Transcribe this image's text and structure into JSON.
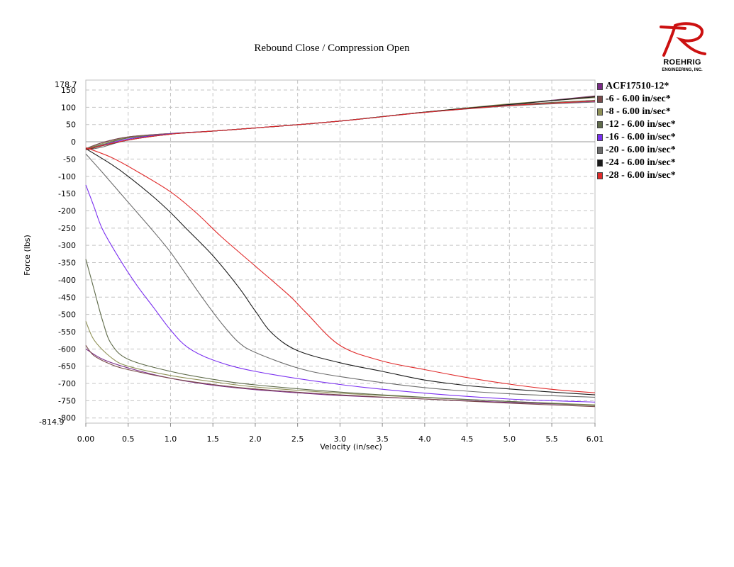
{
  "logo": {
    "name": "ROEHRIG",
    "sub": "ENGINEERING, INC.",
    "color": "#cc1111"
  },
  "chart_data": {
    "type": "line",
    "title": "Rebound Close / Compression Open",
    "xlabel": "Velocity (in/sec)",
    "ylabel": "Force (lbs)",
    "xlim": [
      0.0,
      6.01
    ],
    "ylim": [
      -814.9,
      178.7
    ],
    "x_ticks": [
      "0.00",
      "0.5",
      "1.0",
      "1.5",
      "2.0",
      "2.5",
      "3.0",
      "3.5",
      "4.0",
      "4.5",
      "5.0",
      "5.5",
      "6.01"
    ],
    "y_ticks": [
      "150",
      "100",
      "50",
      "0",
      "-50",
      "-100",
      "-150",
      "-200",
      "-250",
      "-300",
      "-350",
      "-400",
      "-450",
      "-500",
      "-550",
      "-600",
      "-650",
      "-700",
      "-750",
      "-800"
    ],
    "y_min_label": "-814.9",
    "y_max_label": "178.7",
    "grid": true,
    "legend_position": "right",
    "series": [
      {
        "name": "ACF17510-12*",
        "color": "#7a2a86",
        "upper": [
          [
            0,
            -20
          ],
          [
            0.2,
            -2
          ],
          [
            0.5,
            14
          ],
          [
            1.0,
            24
          ],
          [
            1.5,
            31
          ],
          [
            2.0,
            40
          ],
          [
            3.0,
            60
          ],
          [
            4.0,
            86
          ],
          [
            5.0,
            108
          ],
          [
            6.01,
            133
          ]
        ],
        "lower": [
          [
            0,
            -600
          ],
          [
            0.2,
            -630
          ],
          [
            0.5,
            -655
          ],
          [
            1.0,
            -685
          ],
          [
            1.5,
            -705
          ],
          [
            2.0,
            -718
          ],
          [
            2.5,
            -727
          ],
          [
            3.0,
            -735
          ],
          [
            4.0,
            -745
          ],
          [
            5.0,
            -755
          ],
          [
            6.01,
            -763
          ]
        ]
      },
      {
        "name": "-6 - 6.00 in/sec*",
        "color": "#7a4a4a",
        "upper": [
          [
            0,
            -20
          ],
          [
            0.2,
            -2
          ],
          [
            0.5,
            14
          ],
          [
            1.0,
            24
          ],
          [
            1.5,
            31
          ],
          [
            2.0,
            40
          ],
          [
            3.0,
            60
          ],
          [
            4.0,
            86
          ],
          [
            5.0,
            108
          ],
          [
            6.01,
            132
          ]
        ],
        "lower": [
          [
            0,
            -590
          ],
          [
            0.1,
            -620
          ],
          [
            0.3,
            -645
          ],
          [
            0.5,
            -660
          ],
          [
            1.0,
            -685
          ],
          [
            1.5,
            -703
          ],
          [
            2.0,
            -716
          ],
          [
            3.0,
            -733
          ],
          [
            4.0,
            -745
          ],
          [
            5.0,
            -757
          ],
          [
            6.01,
            -767
          ]
        ]
      },
      {
        "name": "-8 - 6.00 in/sec*",
        "color": "#8f9157",
        "upper": [
          [
            0,
            -21
          ],
          [
            0.2,
            -5
          ],
          [
            0.5,
            12
          ],
          [
            1.0,
            23
          ],
          [
            1.5,
            31
          ],
          [
            2.0,
            40
          ],
          [
            3.0,
            60
          ],
          [
            4.0,
            86
          ],
          [
            5.0,
            110
          ],
          [
            6.01,
            128
          ]
        ],
        "lower": [
          [
            0,
            -520
          ],
          [
            0.1,
            -575
          ],
          [
            0.3,
            -625
          ],
          [
            0.5,
            -650
          ],
          [
            1.0,
            -677
          ],
          [
            1.5,
            -695
          ],
          [
            2.0,
            -710
          ],
          [
            3.0,
            -728
          ],
          [
            4.0,
            -741
          ],
          [
            5.0,
            -752
          ],
          [
            6.01,
            -762
          ]
        ]
      },
      {
        "name": "-12 - 6.00 in/sec*",
        "color": "#5f6b4a",
        "upper": [
          [
            0,
            -21
          ],
          [
            0.2,
            -8
          ],
          [
            0.5,
            11
          ],
          [
            1.0,
            23
          ],
          [
            1.5,
            31
          ],
          [
            2.0,
            40
          ],
          [
            3.0,
            60
          ],
          [
            4.0,
            86
          ],
          [
            5.0,
            107
          ],
          [
            6.01,
            120
          ]
        ],
        "lower": [
          [
            0,
            -340
          ],
          [
            0.1,
            -430
          ],
          [
            0.2,
            -520
          ],
          [
            0.3,
            -585
          ],
          [
            0.5,
            -630
          ],
          [
            1.0,
            -665
          ],
          [
            1.5,
            -688
          ],
          [
            2.0,
            -704
          ],
          [
            3.0,
            -725
          ],
          [
            4.0,
            -740
          ],
          [
            5.0,
            -752
          ],
          [
            6.01,
            -764
          ]
        ]
      },
      {
        "name": "-16 - 6.00 in/sec*",
        "color": "#7a2ff0",
        "upper": [
          [
            0,
            -22
          ],
          [
            0.1,
            -17
          ],
          [
            0.2,
            -10
          ],
          [
            0.5,
            8
          ],
          [
            1.0,
            23
          ],
          [
            1.5,
            31
          ],
          [
            2.0,
            40
          ],
          [
            3.0,
            60
          ],
          [
            4.0,
            85
          ],
          [
            5.0,
            105
          ],
          [
            6.01,
            117
          ]
        ],
        "lower": [
          [
            0,
            -125
          ],
          [
            0.1,
            -190
          ],
          [
            0.2,
            -255
          ],
          [
            0.4,
            -340
          ],
          [
            0.6,
            -415
          ],
          [
            0.8,
            -480
          ],
          [
            1.0,
            -545
          ],
          [
            1.2,
            -595
          ],
          [
            1.5,
            -632
          ],
          [
            2.0,
            -665
          ],
          [
            3.0,
            -703
          ],
          [
            4.0,
            -728
          ],
          [
            5.0,
            -745
          ],
          [
            6.01,
            -754
          ]
        ]
      },
      {
        "name": "-20 - 6.00 in/sec*",
        "color": "#6b6b6b",
        "upper": [
          [
            0,
            -23
          ],
          [
            0.1,
            -20
          ],
          [
            0.2,
            -15
          ],
          [
            0.5,
            5
          ],
          [
            1.0,
            22
          ],
          [
            1.5,
            31
          ],
          [
            2.0,
            40
          ],
          [
            3.0,
            60
          ],
          [
            4.0,
            85
          ],
          [
            5.0,
            104
          ],
          [
            6.01,
            115
          ]
        ],
        "lower": [
          [
            0,
            -35
          ],
          [
            0.2,
            -90
          ],
          [
            0.5,
            -175
          ],
          [
            0.8,
            -260
          ],
          [
            1.0,
            -320
          ],
          [
            1.2,
            -390
          ],
          [
            1.4,
            -460
          ],
          [
            1.6,
            -525
          ],
          [
            1.8,
            -580
          ],
          [
            2.0,
            -610
          ],
          [
            2.5,
            -655
          ],
          [
            3.0,
            -680
          ],
          [
            4.0,
            -712
          ],
          [
            5.0,
            -730
          ],
          [
            6.01,
            -740
          ]
        ]
      },
      {
        "name": "-24 - 6.00 in/sec*",
        "color": "#1a1a1a",
        "upper": [
          [
            0,
            -23
          ],
          [
            0.5,
            5
          ],
          [
            1.0,
            22
          ],
          [
            1.5,
            31
          ],
          [
            2.0,
            40
          ],
          [
            3.0,
            60
          ],
          [
            4.0,
            86
          ],
          [
            5.0,
            108
          ],
          [
            6.01,
            130
          ]
        ],
        "lower": [
          [
            0,
            -20
          ],
          [
            0.3,
            -65
          ],
          [
            0.5,
            -100
          ],
          [
            0.8,
            -160
          ],
          [
            1.0,
            -205
          ],
          [
            1.2,
            -255
          ],
          [
            1.5,
            -330
          ],
          [
            1.8,
            -420
          ],
          [
            2.0,
            -490
          ],
          [
            2.2,
            -555
          ],
          [
            2.5,
            -605
          ],
          [
            3.0,
            -640
          ],
          [
            3.5,
            -665
          ],
          [
            4.0,
            -690
          ],
          [
            4.5,
            -706
          ],
          [
            5.0,
            -716
          ],
          [
            5.5,
            -725
          ],
          [
            6.01,
            -733
          ]
        ]
      },
      {
        "name": "-28 - 6.00 in/sec*",
        "color": "#e02a2a",
        "upper": [
          [
            0,
            -22
          ],
          [
            0.5,
            5
          ],
          [
            1.0,
            22
          ],
          [
            1.5,
            31
          ],
          [
            2.0,
            40
          ],
          [
            3.0,
            60
          ],
          [
            4.0,
            85
          ],
          [
            5.0,
            105
          ],
          [
            6.01,
            118
          ]
        ],
        "lower": [
          [
            0,
            -17
          ],
          [
            0.3,
            -45
          ],
          [
            0.6,
            -85
          ],
          [
            1.0,
            -145
          ],
          [
            1.3,
            -205
          ],
          [
            1.6,
            -275
          ],
          [
            2.0,
            -360
          ],
          [
            2.4,
            -445
          ],
          [
            2.6,
            -495
          ],
          [
            3.0,
            -590
          ],
          [
            3.5,
            -635
          ],
          [
            4.0,
            -660
          ],
          [
            4.5,
            -683
          ],
          [
            5.0,
            -702
          ],
          [
            5.5,
            -717
          ],
          [
            6.01,
            -727
          ]
        ]
      }
    ]
  }
}
